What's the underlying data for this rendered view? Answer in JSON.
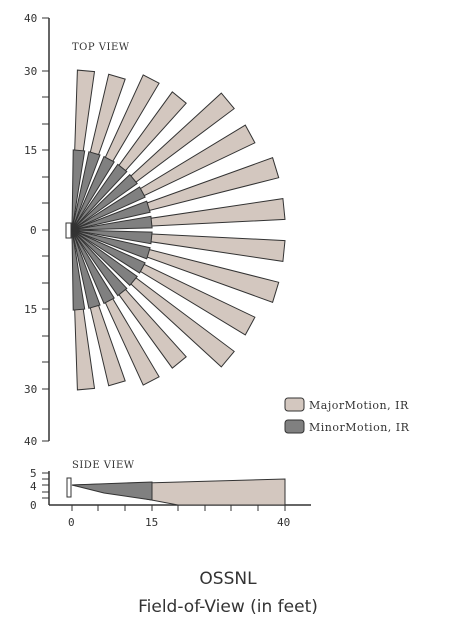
{
  "top_view": {
    "title": "TOP VIEW",
    "y_ticks": [
      "40",
      "30",
      "15",
      "0",
      "15",
      "30",
      "40"
    ],
    "sensor": "sensor-top"
  },
  "side_view": {
    "title": "SIDE VIEW",
    "y_ticks": [
      "5",
      "4",
      "0"
    ],
    "x_ticks": [
      "0",
      "15",
      "40"
    ]
  },
  "legend": {
    "major": {
      "label": "MajorMotion, IR",
      "color": "#d3c7bf"
    },
    "minor": {
      "label": "MinorMotion, IR",
      "color": "#808080"
    }
  },
  "caption": {
    "model": "OSSNL",
    "description": "Field-of-View (in feet)"
  },
  "colors": {
    "major": "#d3c7bf",
    "minor": "#808080",
    "stroke": "#333333"
  },
  "coverage": {
    "range_ft": 40,
    "minor_range_ft": 15,
    "major_beam_lengths_ft": [
      30,
      30,
      32,
      32,
      38,
      38,
      40,
      40,
      40,
      40,
      38,
      38,
      32,
      32,
      30,
      30
    ],
    "side_mount_height_ft": 4,
    "side_major_reach_ft": 40,
    "side_minor_reach_ft": 15
  }
}
